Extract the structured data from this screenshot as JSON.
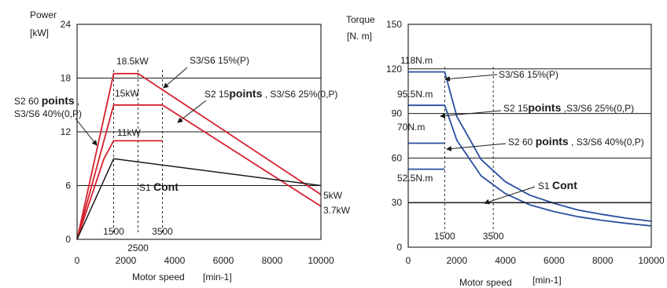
{
  "chart_data": [
    {
      "type": "line",
      "title": "",
      "ylabel": "Power",
      "yunit": "[kW]",
      "xlabel": "Motor speed",
      "xunit": "[min-1]",
      "xlim": [
        0,
        10000
      ],
      "ylim": [
        0,
        24
      ],
      "xticks": [
        0,
        2000,
        4000,
        6000,
        8000,
        10000
      ],
      "yticks": [
        0,
        6,
        12,
        18,
        24
      ],
      "grid_y": [
        6,
        12,
        18
      ],
      "reference_speeds": [
        1500,
        2500,
        3500
      ],
      "reference_speed_labels": [
        "1500",
        "2500",
        "3500"
      ],
      "color": "#d6202e",
      "series": [
        {
          "label": "S3/S6 15%(P)",
          "points": [
            [
              0,
              0
            ],
            [
              1500,
              18.5
            ],
            [
              2500,
              18.5
            ],
            [
              10000,
              5
            ]
          ]
        },
        {
          "label": "S2 15points , S3/S6 25%(0,P)",
          "points": [
            [
              0,
              0
            ],
            [
              1500,
              15
            ],
            [
              3500,
              15
            ],
            [
              10000,
              3.7
            ]
          ]
        },
        {
          "label": "S2 60 points , S3/S6 40%(0,P)",
          "points": [
            [
              0,
              0
            ],
            [
              1100,
              9
            ],
            [
              1500,
              11
            ],
            [
              3500,
              11
            ]
          ]
        },
        {
          "label": "S1 Cont",
          "points": [
            [
              0,
              0
            ],
            [
              1500,
              9
            ],
            [
              10000,
              6
            ]
          ]
        }
      ],
      "annotations": [
        {
          "text": "18.5kW",
          "type": "point"
        },
        {
          "text": "15kW",
          "type": "point"
        },
        {
          "text": "11kW",
          "type": "point"
        },
        {
          "text": "5kW",
          "type": "end"
        },
        {
          "text": "3.7kW",
          "type": "end"
        }
      ],
      "legend_labels": {
        "s3_15_text": "S3/S6 15%(P)",
        "s2_15_prefix": "S2 15",
        "s2_15_bold": "points",
        "s2_15_suffix": " , S3/S6 25%(0,P)",
        "s2_60_prefix": "S2 60 ",
        "s2_60_bold": "points",
        "s2_60_suffix": " ,",
        "s2_60_line2": "S3/S6 40%(0,P)",
        "s1_prefix": "S1 ",
        "s1_bold": "Cont"
      }
    },
    {
      "type": "line",
      "title": "",
      "ylabel": "Torque",
      "yunit": "[N. m]",
      "xlabel": "Motor speed",
      "xunit": "[min-1]",
      "xlim": [
        0,
        10000
      ],
      "ylim": [
        0,
        150
      ],
      "xticks": [
        0,
        2000,
        4000,
        6000,
        8000,
        10000
      ],
      "yticks": [
        0,
        30,
        60,
        90,
        120,
        150
      ],
      "grid_y": [
        30,
        60,
        90,
        120
      ],
      "reference_speeds": [
        1500,
        3500
      ],
      "reference_speed_labels": [
        "1500",
        "3500"
      ],
      "color": "#2b4fa0",
      "series": [
        {
          "label": "S3/S6 15%(P)",
          "points": [
            [
              0,
              118
            ],
            [
              1500,
              118
            ],
            [
              2000,
              88
            ],
            [
              3000,
              59
            ],
            [
              4000,
              44
            ],
            [
              5000,
              35
            ],
            [
              6000,
              29.5
            ],
            [
              7000,
              25
            ],
            [
              8000,
              22
            ],
            [
              9000,
              19.5
            ],
            [
              10000,
              17.5
            ]
          ]
        },
        {
          "label": "S2 15points ,S3/S6 25%(0,P)",
          "points": [
            [
              0,
              95.5
            ],
            [
              1500,
              95.5
            ],
            [
              2000,
              72
            ],
            [
              3000,
              48
            ],
            [
              4000,
              36
            ],
            [
              5000,
              28.5
            ],
            [
              6000,
              24
            ],
            [
              7000,
              20.5
            ],
            [
              8000,
              18
            ],
            [
              9000,
              16
            ],
            [
              10000,
              14.3
            ]
          ]
        },
        {
          "label": "S2 60 points , S3/S6 40%(0,P)",
          "points": [
            [
              0,
              70
            ],
            [
              1500,
              70
            ]
          ]
        },
        {
          "label": "S1 Cont",
          "points": [
            [
              0,
              52.5
            ],
            [
              1500,
              52.5
            ]
          ]
        },
        {
          "label": "S1 Cont rated",
          "points": [
            [
              0,
              30
            ],
            [
              10000,
              30
            ]
          ]
        }
      ],
      "annotations": [
        {
          "text": "118N.m",
          "type": "level"
        },
        {
          "text": "95.5N.m",
          "type": "level"
        },
        {
          "text": "70N.m",
          "type": "level"
        },
        {
          "text": "52.5N.m",
          "type": "level"
        }
      ],
      "legend_labels": {
        "s3_15_text": "S3/S6 15%(P)",
        "s2_15_prefix": "S2 15",
        "s2_15_bold": "points",
        "s2_15_suffix": " ,S3/S6 25%(0,P)",
        "s2_60_prefix": "S2 60 ",
        "s2_60_bold": "points",
        "s2_60_suffix": " , S3/S6 40%(0,P)",
        "s1_prefix": "S1 ",
        "s1_bold": "Cont"
      }
    }
  ]
}
